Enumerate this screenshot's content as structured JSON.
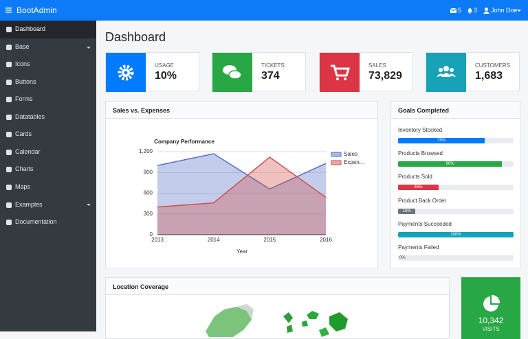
{
  "navbar": {
    "brand": "BootAdmin",
    "messages": "5",
    "notifications": "3",
    "user": "John Doe"
  },
  "sidebar": {
    "items": [
      "Dashboard",
      "Base",
      "Icons",
      "Buttons",
      "Forms",
      "Datatables",
      "Cards",
      "Calendar",
      "Charts",
      "Maps",
      "Examples",
      "Documentation"
    ]
  },
  "page_title": "Dashboard",
  "stats": [
    {
      "label": "USAGE",
      "value": "10%"
    },
    {
      "label": "TICKETS",
      "value": "374"
    },
    {
      "label": "SALES",
      "value": "73,829"
    },
    {
      "label": "CUSTOMERS",
      "value": "1,683"
    }
  ],
  "sales_card": {
    "title": "Sales vs. Expenses",
    "chart_data": {
      "type": "area",
      "title": "Company Performance",
      "categories": [
        "2013",
        "2014",
        "2015",
        "2016"
      ],
      "series": [
        {
          "name": "Sales",
          "color": "#5470c6",
          "values": [
            1000,
            1170,
            660,
            1030
          ]
        },
        {
          "name": "Expen...",
          "color": "#d0504a",
          "values": [
            400,
            460,
            1120,
            540
          ]
        }
      ],
      "ylim": [
        0,
        1200
      ],
      "yticks": [
        0,
        300,
        600,
        900,
        {
          "value": 1200,
          "label": "1,200"
        }
      ],
      "xlabel": "Year",
      "grid": true,
      "legend": "right"
    }
  },
  "goals": {
    "title": "Goals Completed",
    "items": [
      {
        "name": "Inventory Stocked",
        "value": 75,
        "value_label": "75%",
        "color": "#007bff"
      },
      {
        "name": "Products Browsed",
        "value": 90,
        "value_label": "90%",
        "color": "#28a745"
      },
      {
        "name": "Products Sold",
        "value": 35,
        "value_label": "35%",
        "color": "#dc3545"
      },
      {
        "name": "Product Back Order",
        "value": 15,
        "value_label": "15%",
        "color": "#6c757d"
      },
      {
        "name": "Payments Succeeded",
        "value": 100,
        "value_label": "100%",
        "color": "#17a2b8"
      },
      {
        "name": "Payments Failed",
        "value": 0,
        "value_label": "0%",
        "color": "#17a2b8"
      }
    ]
  },
  "location": {
    "title": "Location Coverage"
  },
  "visits": {
    "value": "10,342",
    "label": "VISITS"
  }
}
